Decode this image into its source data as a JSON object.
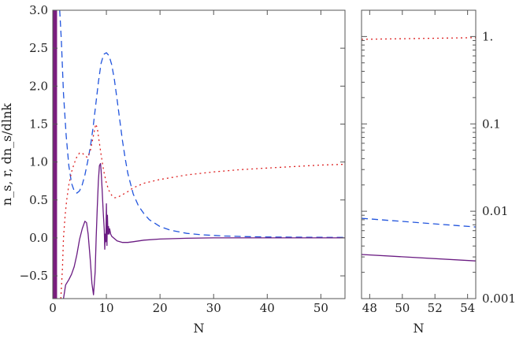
{
  "chart_data": [
    {
      "type": "line",
      "xlabel": "N",
      "ylabel": "n_s, r, dn_s/dlnk",
      "xlim": [
        0,
        54.5
      ],
      "ylim": [
        -0.8,
        3.0
      ],
      "xticks": [
        0,
        10,
        20,
        30,
        40,
        50
      ],
      "xtick_labels": [
        "0",
        "10",
        "20",
        "30",
        "40",
        "50"
      ],
      "yticks": [
        -0.5,
        0.0,
        0.5,
        1.0,
        1.5,
        2.0,
        2.5,
        3.0
      ],
      "ytick_labels": [
        "−0.5",
        "0.0",
        "0.5",
        "1.0",
        "1.5",
        "2.0",
        "2.5",
        "3.0"
      ],
      "shaded_band": [
        0,
        0.8
      ],
      "series": [
        {
          "color": "#2255dd",
          "dash": "8,5",
          "x": [
            1.3,
            1.6,
            2.0,
            2.5,
            3.0,
            3.5,
            4.0,
            4.5,
            5.0,
            5.5,
            6.0,
            6.5,
            7.0,
            7.5,
            8.0,
            8.5,
            9.0,
            9.5,
            10.0,
            10.5,
            11.0,
            11.5,
            12.0,
            12.5,
            13.0,
            13.5,
            14.0,
            15.0,
            16.0,
            17.0,
            18.0,
            20.0,
            22.0,
            25.0,
            28.0,
            32.0,
            36.0,
            40.0,
            45.0,
            50.0,
            54.5
          ],
          "y": [
            3.0,
            2.6,
            1.9,
            1.35,
            0.95,
            0.72,
            0.62,
            0.59,
            0.62,
            0.7,
            0.83,
            1.0,
            1.2,
            1.45,
            1.75,
            2.05,
            2.3,
            2.42,
            2.44,
            2.4,
            2.28,
            2.08,
            1.82,
            1.55,
            1.28,
            1.05,
            0.85,
            0.58,
            0.42,
            0.32,
            0.24,
            0.15,
            0.1,
            0.06,
            0.04,
            0.025,
            0.017,
            0.012,
            0.01,
            0.008,
            0.007
          ]
        },
        {
          "color": "#dd2222",
          "dash": "2,4",
          "x": [
            1.5,
            1.8,
            2.0,
            2.3,
            2.6,
            3.0,
            3.5,
            4.0,
            4.5,
            5.0,
            5.5,
            6.0,
            6.5,
            7.0,
            7.5,
            8.0,
            8.3,
            8.6,
            9.0,
            9.5,
            10.0,
            10.5,
            11.0,
            11.5,
            12.0,
            13.0,
            14.0,
            15.0,
            17.0,
            20.0,
            25.0,
            30.0,
            35.0,
            40.0,
            45.0,
            50.0,
            54.5
          ],
          "y": [
            -0.8,
            -0.4,
            0.0,
            0.3,
            0.5,
            0.7,
            0.87,
            0.98,
            1.07,
            1.12,
            1.12,
            1.08,
            1.06,
            1.15,
            1.32,
            1.5,
            1.45,
            1.3,
            1.1,
            0.88,
            0.72,
            0.62,
            0.56,
            0.53,
            0.53,
            0.57,
            0.61,
            0.66,
            0.72,
            0.77,
            0.83,
            0.87,
            0.9,
            0.92,
            0.94,
            0.96,
            0.97
          ]
        },
        {
          "color": "#6a1b82",
          "dash": "",
          "x": [
            2.0,
            2.4,
            3.0,
            3.5,
            4.0,
            4.5,
            5.0,
            5.5,
            6.0,
            6.3,
            6.6,
            7.0,
            7.3,
            7.6,
            7.9,
            8.1,
            8.3,
            8.5,
            8.7,
            8.9,
            9.0,
            9.2,
            9.4,
            9.6,
            9.7,
            9.8,
            9.9,
            10.0,
            10.1,
            10.2,
            10.3,
            10.4,
            10.5,
            10.6,
            10.8,
            11.0,
            11.5,
            12.0,
            13.0,
            14.0,
            15.0,
            17.0,
            20.0,
            25.0,
            30.0,
            40.0,
            54.5
          ],
          "y": [
            -0.8,
            -0.62,
            -0.55,
            -0.48,
            -0.38,
            -0.22,
            -0.02,
            0.12,
            0.22,
            0.2,
            0.05,
            -0.3,
            -0.6,
            -0.75,
            -0.45,
            0.0,
            0.4,
            0.75,
            0.95,
            0.98,
            0.9,
            0.65,
            0.35,
            0.1,
            -0.15,
            0.05,
            -0.05,
            0.45,
            -0.1,
            0.3,
            0.05,
            0.15,
            0.05,
            0.12,
            0.05,
            0.02,
            -0.01,
            -0.04,
            -0.06,
            -0.06,
            -0.05,
            -0.03,
            -0.015,
            -0.005,
            0.0,
            0.0,
            0.0
          ]
        }
      ]
    },
    {
      "type": "line",
      "xlabel": "N",
      "xlim": [
        47.5,
        54.5
      ],
      "ylim": [
        0.001,
        2.0
      ],
      "yscale": "log",
      "xticks": [
        48,
        50,
        52,
        54
      ],
      "xtick_labels": [
        "48",
        "50",
        "52",
        "54"
      ],
      "yticks": [
        0.001,
        0.01,
        0.1,
        1.0
      ],
      "ytick_labels": [
        "0.001",
        "0.01",
        "0.1",
        "1."
      ],
      "series": [
        {
          "color": "#dd2222",
          "dash": "2,4",
          "x": [
            47.5,
            54.5
          ],
          "y": [
            0.93,
            0.97
          ]
        },
        {
          "color": "#2255dd",
          "dash": "8,5",
          "x": [
            47.5,
            54.5
          ],
          "y": [
            0.0083,
            0.0066
          ]
        },
        {
          "color": "#6a1b82",
          "dash": "",
          "x": [
            47.5,
            54.5
          ],
          "y": [
            0.0032,
            0.0027
          ]
        }
      ]
    }
  ]
}
